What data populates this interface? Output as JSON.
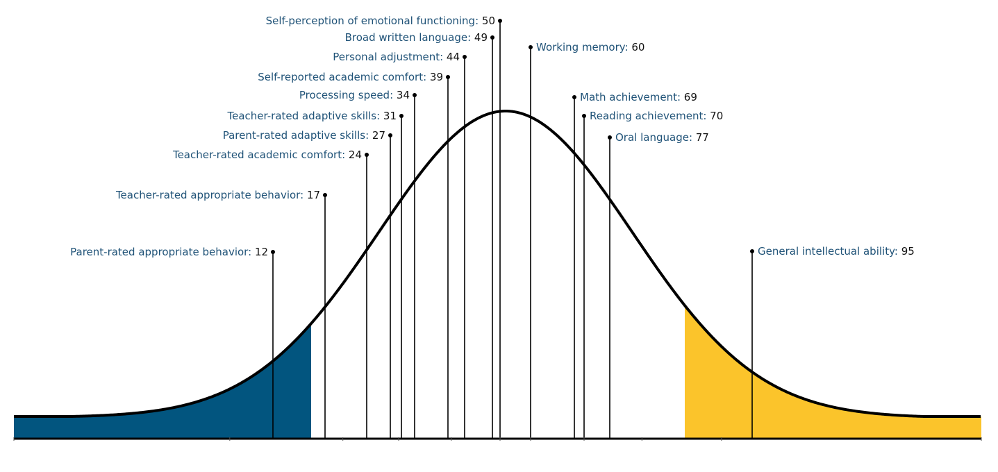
{
  "chart_data": {
    "type": "area",
    "description_shape": "normal distribution curve",
    "x_range": [
      0,
      100
    ],
    "colors": {
      "low_region": "#02557f",
      "high_region": "#fbc42b",
      "curve": "#000000",
      "marker": "#000000",
      "label_name": "#1f5277",
      "label_value": "#111111"
    },
    "shaded_regions": [
      {
        "from": 0,
        "to": 16,
        "color_key": "low_region"
      },
      {
        "from": 84,
        "to": 100,
        "color_key": "high_region"
      }
    ],
    "markers": [
      {
        "label": "Parent-rated appropriate behavior",
        "value": 12,
        "side": "left"
      },
      {
        "label": "Teacher-rated appropriate behavior",
        "value": 17,
        "side": "left"
      },
      {
        "label": "Teacher-rated academic comfort",
        "value": 24,
        "side": "left"
      },
      {
        "label": "Parent-rated adaptive skills",
        "value": 27,
        "side": "left"
      },
      {
        "label": "Teacher-rated adaptive skills",
        "value": 31,
        "side": "left"
      },
      {
        "label": "Processing speed",
        "value": 34,
        "side": "left"
      },
      {
        "label": "Self-reported academic comfort",
        "value": 39,
        "side": "left"
      },
      {
        "label": "Personal adjustment",
        "value": 44,
        "side": "left"
      },
      {
        "label": "Broad written language",
        "value": 49,
        "side": "left"
      },
      {
        "label": "Self-perception of emotional functioning",
        "value": 50,
        "side": "left"
      },
      {
        "label": "Working memory",
        "value": 60,
        "side": "right"
      },
      {
        "label": "Math achievement",
        "value": 69,
        "side": "right"
      },
      {
        "label": "Reading achievement",
        "value": 70,
        "side": "right"
      },
      {
        "label": "Oral language",
        "value": 77,
        "side": "right"
      },
      {
        "label": "General intellectual ability",
        "value": 95,
        "side": "right"
      }
    ]
  }
}
